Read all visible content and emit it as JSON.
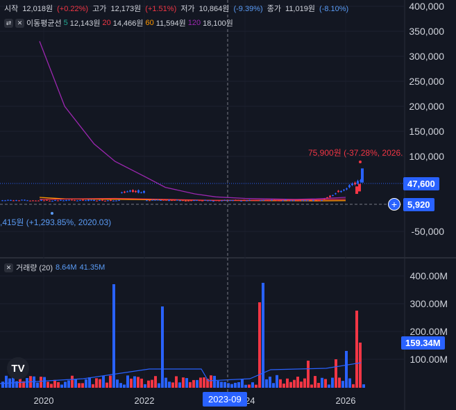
{
  "legend": {
    "open_label": "시작",
    "open_value": "12,018원",
    "open_change": "(+0.22%)",
    "high_label": "고가",
    "high_value": "12,173원",
    "high_change": "(+1.51%)",
    "low_label": "저가",
    "low_value": "10,864원",
    "low_change": "(-9.39%)",
    "close_label": "종가",
    "close_value": "11,019원",
    "close_change": "(-8.10%)"
  },
  "ma_legend": {
    "title": "이동평균선",
    "items": [
      {
        "period": "5",
        "value": "12,143원",
        "color": "#22ab94"
      },
      {
        "period": "20",
        "value": "14,466원",
        "color": "#f23645"
      },
      {
        "period": "60",
        "value": "11,594원",
        "color": "#ff9800"
      },
      {
        "period": "120",
        "value": "18,100원",
        "color": "#9c27b0"
      }
    ]
  },
  "volume_legend": {
    "title": "거래량 (20)",
    "value1": "8.64M",
    "value2": "41.35M"
  },
  "annotations": {
    "high_marker": "75,900원 (-37.28%, 2026.",
    "low_marker": ",415원 (+1,293.85%, 2020.03)",
    "price_tag": "47,600",
    "line_tag": "5,920",
    "volume_tag": "159.34M",
    "time_tag": "2023-09"
  },
  "colors": {
    "background": "#131722",
    "up": "#f23645",
    "down": "#2962ff",
    "grid": "#1e222d",
    "ma120": "#9c27b0",
    "ma60": "#ff9800",
    "ma20": "#f23645"
  },
  "chart_data": [
    {
      "type": "line",
      "title": "",
      "price_axis_ticks": [
        "400,000",
        "350,000",
        "300,000",
        "250,000",
        "200,000",
        "150,000",
        "100,000",
        "-50,000"
      ],
      "ylim": [
        -75000,
        410000
      ],
      "x_ticks": [
        "2020",
        "2022",
        "2024",
        "2026"
      ],
      "series": [
        {
          "name": "120",
          "x": [
            "2019-12",
            "2020-06",
            "2021-01",
            "2021-06",
            "2022-01",
            "2022-06",
            "2023-01",
            "2023-06",
            "2024-01",
            "2024-06",
            "2025-01",
            "2025-06",
            "2026-01"
          ],
          "values": [
            330000,
            200000,
            125000,
            90000,
            60000,
            38000,
            25000,
            19000,
            16000,
            15000,
            14000,
            15000,
            18100
          ]
        },
        {
          "name": "60",
          "x": [
            "2019-12",
            "2020-06",
            "2021-06",
            "2022-06",
            "2023-06",
            "2024-06",
            "2025-06",
            "2026-01"
          ],
          "values": [
            18000,
            15000,
            14000,
            13000,
            12000,
            11500,
            11000,
            11594
          ]
        },
        {
          "name": "20",
          "x": [
            "2019-12",
            "2021-06",
            "2023-06",
            "2025-06",
            "2026-01"
          ],
          "values": [
            14000,
            16000,
            12000,
            13000,
            14466
          ]
        }
      ]
    },
    {
      "type": "bar",
      "title": "",
      "volume_axis_ticks": [
        "400.00M",
        "300.00M",
        "200.00M",
        "100.00M"
      ],
      "ylim": [
        0,
        430
      ],
      "unit": "M"
    }
  ]
}
